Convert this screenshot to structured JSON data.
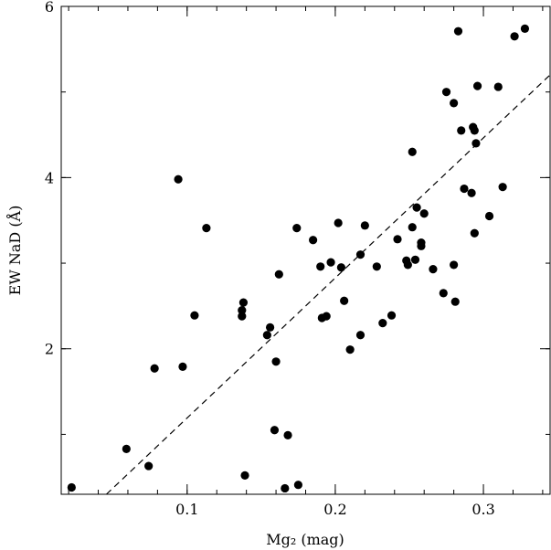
{
  "chart_data": {
    "type": "scatter",
    "xlabel": "Mg₂ (mag)",
    "ylabel": "EW NaD (Å)",
    "xlim": [
      0.015,
      0.345
    ],
    "ylim": [
      0.3,
      6.0
    ],
    "x_major_ticks": [
      0.1,
      0.2,
      0.3
    ],
    "x_major_tick_labels": [
      "0.1",
      "0.2",
      "0.3"
    ],
    "y_major_ticks": [
      2,
      4,
      6
    ],
    "y_major_tick_labels": [
      "2",
      "4",
      "6"
    ],
    "grid": false,
    "legend": "none",
    "colors": {
      "points": "#000000",
      "fit_line": "#000000"
    },
    "fit_line": {
      "style": "dashed",
      "x": [
        0.0455,
        0.345
      ],
      "y": [
        0.3,
        5.2
      ]
    },
    "series": [
      {
        "x": [
          0.022,
          0.059,
          0.074,
          0.078,
          0.094,
          0.097,
          0.105,
          0.113,
          0.137,
          0.137,
          0.138,
          0.139,
          0.154,
          0.156,
          0.159,
          0.16,
          0.162,
          0.166,
          0.168,
          0.174,
          0.175,
          0.185,
          0.19,
          0.191,
          0.194,
          0.197,
          0.202,
          0.204,
          0.206,
          0.21,
          0.217,
          0.217,
          0.22,
          0.228,
          0.232,
          0.238,
          0.242,
          0.248,
          0.249,
          0.252,
          0.252,
          0.254,
          0.255,
          0.258,
          0.258,
          0.26,
          0.266,
          0.273,
          0.275,
          0.28,
          0.28,
          0.281,
          0.283,
          0.285,
          0.287,
          0.292,
          0.293,
          0.294,
          0.294,
          0.295,
          0.296,
          0.304,
          0.31,
          0.313,
          0.321,
          0.328
        ],
        "y": [
          0.38,
          0.83,
          0.63,
          1.77,
          3.98,
          1.79,
          2.39,
          3.41,
          2.45,
          2.38,
          2.54,
          0.52,
          2.16,
          2.25,
          1.05,
          1.85,
          2.87,
          0.37,
          0.99,
          3.41,
          0.41,
          3.27,
          2.96,
          2.36,
          2.38,
          3.01,
          3.47,
          2.95,
          2.56,
          1.99,
          3.1,
          2.16,
          3.44,
          2.96,
          2.3,
          2.39,
          3.28,
          3.03,
          2.98,
          4.3,
          3.42,
          3.04,
          3.65,
          3.24,
          3.2,
          3.58,
          2.93,
          2.65,
          5.0,
          4.87,
          2.98,
          2.55,
          5.71,
          4.55,
          3.87,
          3.82,
          4.59,
          4.55,
          3.35,
          4.4,
          5.07,
          3.55,
          5.06,
          3.89,
          5.65,
          5.74
        ]
      }
    ]
  }
}
